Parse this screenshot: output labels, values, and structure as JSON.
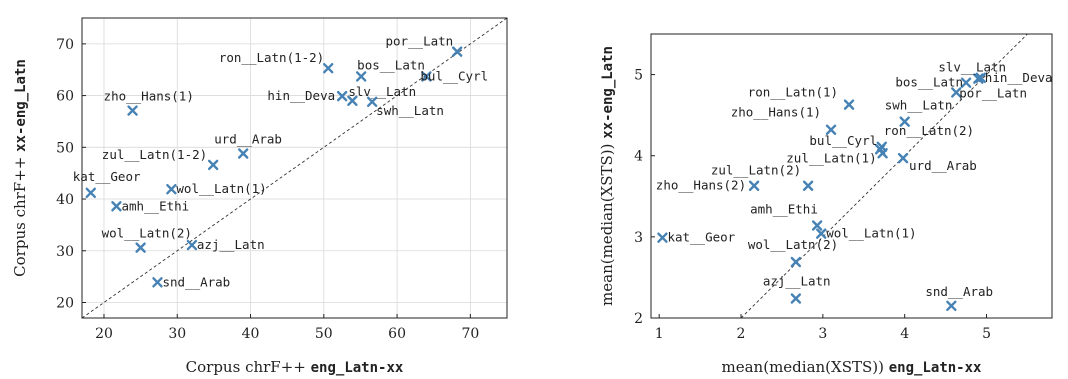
{
  "chart_data": [
    {
      "type": "scatter",
      "xlabel": "Corpus chrF++",
      "xlabel_code": "eng_Latn-xx",
      "ylabel": "Corpus chrF++",
      "ylabel_code": "xx-eng_Latn",
      "xlim": [
        17,
        75
      ],
      "ylim": [
        17,
        75
      ],
      "xticks": [
        20,
        30,
        40,
        50,
        60,
        70
      ],
      "yticks": [
        20,
        30,
        40,
        50,
        60,
        70
      ],
      "grid": true,
      "diagonal": true,
      "marker_color": "#4682b4",
      "points": [
        {
          "label": "por__Latn",
          "x": 68.2,
          "y": 68.5
        },
        {
          "label": "ron__Latn(1-2)",
          "x": 50.6,
          "y": 65.3
        },
        {
          "label": "bos__Latn",
          "x": 55.1,
          "y": 63.7
        },
        {
          "label": "bul__Cyrl",
          "x": 64.0,
          "y": 63.7
        },
        {
          "label": "hin__Deva",
          "x": 52.5,
          "y": 59.9
        },
        {
          "label": "slv__Latn",
          "x": 53.9,
          "y": 59.0
        },
        {
          "label": "swh__Latn",
          "x": 56.6,
          "y": 58.8
        },
        {
          "label": "zho__Hans(1)",
          "x": 23.9,
          "y": 57.1
        },
        {
          "label": "urd__Arab",
          "x": 39.0,
          "y": 48.8
        },
        {
          "label": "zul__Latn(1-2)",
          "x": 34.9,
          "y": 46.6
        },
        {
          "label": "wol__Latn(1)",
          "x": 29.2,
          "y": 41.9
        },
        {
          "label": "kat__Geor",
          "x": 18.2,
          "y": 41.2
        },
        {
          "label": "amh__Ethi",
          "x": 21.7,
          "y": 38.6
        },
        {
          "label": "wol__Latn(2)",
          "x": 25.0,
          "y": 30.6
        },
        {
          "label": "azj__Latn",
          "x": 32.0,
          "y": 31.1
        },
        {
          "label": "snd__Arab",
          "x": 27.3,
          "y": 23.9
        }
      ]
    },
    {
      "type": "scatter",
      "xlabel": "mean(median(XSTS))",
      "xlabel_code": "eng_Latn-xx",
      "ylabel": "mean(median(XSTS))",
      "ylabel_code": "xx-eng_Latn",
      "xlim": [
        0.9,
        5.8
      ],
      "ylim": [
        2,
        5.5
      ],
      "xticks": [
        1,
        2,
        3,
        4,
        5
      ],
      "yticks": [
        2,
        3,
        4,
        5
      ],
      "grid": false,
      "diagonal": true,
      "marker_color": "#4682b4",
      "points": [
        {
          "label": "slv__Latn",
          "x": 4.9,
          "y": 4.95
        },
        {
          "label": "bos__Latn",
          "x": 4.75,
          "y": 4.9
        },
        {
          "label": "hin__Deva",
          "x": 4.93,
          "y": 4.96
        },
        {
          "label": "por__Latn",
          "x": 4.63,
          "y": 4.78
        },
        {
          "label": "ron__Latn(1)",
          "x": 3.32,
          "y": 4.63
        },
        {
          "label": "zho__Hans(1)",
          "x": 3.1,
          "y": 4.32
        },
        {
          "label": "swh__Latn",
          "x": 4.0,
          "y": 4.42
        },
        {
          "label": "ron__Latn(2)",
          "x": 3.72,
          "y": 4.11
        },
        {
          "label": "bul__Cyrl",
          "x": 3.7,
          "y": 4.08
        },
        {
          "label": "zul__Latn(1)",
          "x": 3.73,
          "y": 4.03
        },
        {
          "label": "urd__Arab",
          "x": 3.98,
          "y": 3.97
        },
        {
          "label": "zul__Latn(2)",
          "x": 2.82,
          "y": 3.63
        },
        {
          "label": "zho__Hans(2)",
          "x": 2.16,
          "y": 3.63
        },
        {
          "label": "kat__Geor",
          "x": 1.04,
          "y": 2.99
        },
        {
          "label": "amh__Ethi",
          "x": 2.93,
          "y": 3.14
        },
        {
          "label": "wol__Latn(1)",
          "x": 2.98,
          "y": 3.04
        },
        {
          "label": "wol__Latn(2)",
          "x": 2.67,
          "y": 2.69
        },
        {
          "label": "azj__Latn",
          "x": 2.67,
          "y": 2.24
        },
        {
          "label": "snd__Arab",
          "x": 4.57,
          "y": 2.15
        }
      ]
    }
  ]
}
